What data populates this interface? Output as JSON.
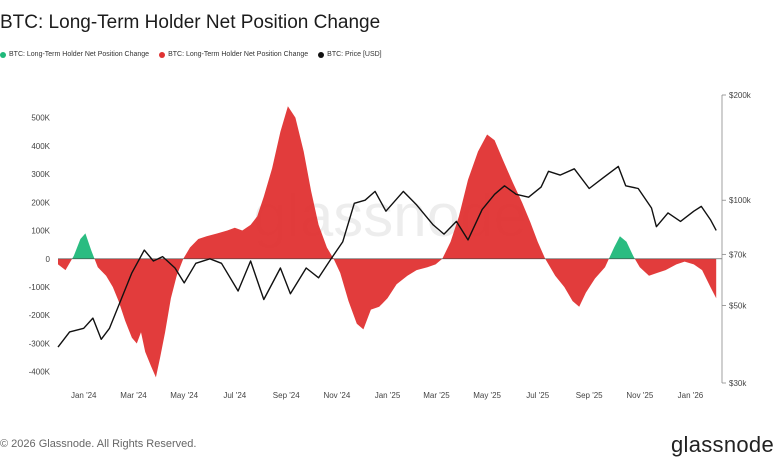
{
  "header": {
    "title": "BTC: Long-Term Holder Net Position Change"
  },
  "legend": [
    {
      "label": "BTC: Long-Term Holder Net Position Change",
      "color": "#1fb87a"
    },
    {
      "label": "BTC: Long-Term Holder Net Position Change",
      "color": "#e03232"
    },
    {
      "label": "BTC: Price [USD]",
      "color": "#111111"
    }
  ],
  "watermark": "glassnode",
  "footer": {
    "copyright": "© 2026 Glassnode. All Rights Reserved.",
    "logo": "glassnode"
  },
  "chart_data": {
    "type": "area",
    "title": "BTC: Long-Term Holder Net Position Change",
    "x_tick_labels": [
      "Jan '24",
      "Mar '24",
      "May '24",
      "Jul '24",
      "Sep '24",
      "Nov '24",
      "Jan '25",
      "Mar '25",
      "May '25",
      "Jul '25",
      "Sep '25",
      "Nov '25",
      "Jan '26"
    ],
    "x_range": [
      "2023-12-01",
      "2026-02-08"
    ],
    "y_left": {
      "ticks": [
        500000,
        400000,
        300000,
        200000,
        100000,
        0,
        -100000,
        -200000,
        -300000,
        -400000
      ],
      "tick_labels": [
        "500K",
        "400K",
        "300K",
        "200K",
        "100K",
        "0",
        "-100K",
        "-200K",
        "-300K",
        "-400K"
      ],
      "range": [
        -440000,
        580000
      ]
    },
    "y_right": {
      "scale": "log",
      "ticks": [
        30000,
        50000,
        70000,
        100000,
        200000
      ],
      "tick_labels": [
        "$30k",
        "$50k",
        "$70k",
        "$100k",
        "$200k"
      ],
      "range": [
        30000,
        200000
      ]
    },
    "grid": false,
    "legend_placement": "top-left",
    "series": [
      {
        "name": "BTC: Long-Term Holder Net Position Change",
        "axis": "left",
        "positive_color": "#1fb87a",
        "negative_color": "#e03232",
        "points": [
          [
            "2023-12-01",
            -20000
          ],
          [
            "2023-12-10",
            -40000
          ],
          [
            "2023-12-20",
            10000
          ],
          [
            "2023-12-28",
            70000
          ],
          [
            "2024-01-03",
            90000
          ],
          [
            "2024-01-10",
            30000
          ],
          [
            "2024-01-18",
            -30000
          ],
          [
            "2024-01-28",
            -60000
          ],
          [
            "2024-02-05",
            -100000
          ],
          [
            "2024-02-12",
            -150000
          ],
          [
            "2024-02-20",
            -220000
          ],
          [
            "2024-02-28",
            -280000
          ],
          [
            "2024-03-05",
            -300000
          ],
          [
            "2024-03-10",
            -260000
          ],
          [
            "2024-03-15",
            -330000
          ],
          [
            "2024-03-22",
            -380000
          ],
          [
            "2024-03-28",
            -420000
          ],
          [
            "2024-04-02",
            -350000
          ],
          [
            "2024-04-08",
            -260000
          ],
          [
            "2024-04-15",
            -140000
          ],
          [
            "2024-04-22",
            -60000
          ],
          [
            "2024-04-30",
            0
          ],
          [
            "2024-05-08",
            40000
          ],
          [
            "2024-05-18",
            70000
          ],
          [
            "2024-05-28",
            80000
          ],
          [
            "2024-06-10",
            90000
          ],
          [
            "2024-06-22",
            100000
          ],
          [
            "2024-07-01",
            110000
          ],
          [
            "2024-07-10",
            100000
          ],
          [
            "2024-07-20",
            120000
          ],
          [
            "2024-07-28",
            150000
          ],
          [
            "2024-08-05",
            220000
          ],
          [
            "2024-08-15",
            320000
          ],
          [
            "2024-08-25",
            450000
          ],
          [
            "2024-09-03",
            540000
          ],
          [
            "2024-09-12",
            500000
          ],
          [
            "2024-09-22",
            380000
          ],
          [
            "2024-10-01",
            240000
          ],
          [
            "2024-10-10",
            120000
          ],
          [
            "2024-10-20",
            40000
          ],
          [
            "2024-10-28",
            0
          ],
          [
            "2024-11-05",
            -50000
          ],
          [
            "2024-11-15",
            -150000
          ],
          [
            "2024-11-25",
            -230000
          ],
          [
            "2024-12-03",
            -250000
          ],
          [
            "2024-12-12",
            -180000
          ],
          [
            "2024-12-22",
            -170000
          ],
          [
            "2025-01-01",
            -140000
          ],
          [
            "2025-01-12",
            -90000
          ],
          [
            "2025-01-25",
            -60000
          ],
          [
            "2025-02-05",
            -40000
          ],
          [
            "2025-02-18",
            -30000
          ],
          [
            "2025-02-28",
            -20000
          ],
          [
            "2025-03-08",
            0
          ],
          [
            "2025-03-18",
            60000
          ],
          [
            "2025-03-28",
            150000
          ],
          [
            "2025-04-08",
            280000
          ],
          [
            "2025-04-20",
            380000
          ],
          [
            "2025-05-01",
            440000
          ],
          [
            "2025-05-10",
            420000
          ],
          [
            "2025-05-20",
            350000
          ],
          [
            "2025-06-01",
            270000
          ],
          [
            "2025-06-12",
            200000
          ],
          [
            "2025-06-22",
            130000
          ],
          [
            "2025-07-01",
            60000
          ],
          [
            "2025-07-10",
            0
          ],
          [
            "2025-07-22",
            -60000
          ],
          [
            "2025-08-02",
            -100000
          ],
          [
            "2025-08-12",
            -150000
          ],
          [
            "2025-08-20",
            -170000
          ],
          [
            "2025-08-28",
            -120000
          ],
          [
            "2025-09-08",
            -70000
          ],
          [
            "2025-09-20",
            -30000
          ],
          [
            "2025-10-01",
            40000
          ],
          [
            "2025-10-08",
            80000
          ],
          [
            "2025-10-16",
            60000
          ],
          [
            "2025-10-24",
            10000
          ],
          [
            "2025-11-01",
            -30000
          ],
          [
            "2025-11-12",
            -60000
          ],
          [
            "2025-11-22",
            -50000
          ],
          [
            "2025-12-02",
            -40000
          ],
          [
            "2025-12-15",
            -20000
          ],
          [
            "2025-12-25",
            -10000
          ],
          [
            "2026-01-05",
            -20000
          ],
          [
            "2026-01-15",
            -40000
          ],
          [
            "2026-01-25",
            -100000
          ],
          [
            "2026-02-01",
            -140000
          ]
        ]
      },
      {
        "name": "BTC: Price [USD]",
        "axis": "right",
        "color": "#111111",
        "points": [
          [
            "2023-12-01",
            38000
          ],
          [
            "2023-12-15",
            42000
          ],
          [
            "2024-01-01",
            43000
          ],
          [
            "2024-01-12",
            46000
          ],
          [
            "2024-01-22",
            40000
          ],
          [
            "2024-02-01",
            43000
          ],
          [
            "2024-02-15",
            52000
          ],
          [
            "2024-02-28",
            62000
          ],
          [
            "2024-03-14",
            72000
          ],
          [
            "2024-03-25",
            67000
          ],
          [
            "2024-04-05",
            69000
          ],
          [
            "2024-04-20",
            64000
          ],
          [
            "2024-05-01",
            58000
          ],
          [
            "2024-05-15",
            66000
          ],
          [
            "2024-06-01",
            68000
          ],
          [
            "2024-06-15",
            66000
          ],
          [
            "2024-07-05",
            55000
          ],
          [
            "2024-07-20",
            67000
          ],
          [
            "2024-08-05",
            52000
          ],
          [
            "2024-08-25",
            64000
          ],
          [
            "2024-09-06",
            54000
          ],
          [
            "2024-09-25",
            64000
          ],
          [
            "2024-10-10",
            60000
          ],
          [
            "2024-10-25",
            68000
          ],
          [
            "2024-11-08",
            76000
          ],
          [
            "2024-11-22",
            98000
          ],
          [
            "2024-12-05",
            100000
          ],
          [
            "2024-12-17",
            106000
          ],
          [
            "2024-12-30",
            93000
          ],
          [
            "2025-01-20",
            106000
          ],
          [
            "2025-02-05",
            97000
          ],
          [
            "2025-02-25",
            85000
          ],
          [
            "2025-03-10",
            80000
          ],
          [
            "2025-03-25",
            87000
          ],
          [
            "2025-04-08",
            77000
          ],
          [
            "2025-04-25",
            94000
          ],
          [
            "2025-05-10",
            104000
          ],
          [
            "2025-05-22",
            110000
          ],
          [
            "2025-06-05",
            104000
          ],
          [
            "2025-06-20",
            102000
          ],
          [
            "2025-07-05",
            109000
          ],
          [
            "2025-07-14",
            121000
          ],
          [
            "2025-07-28",
            118000
          ],
          [
            "2025-08-14",
            123000
          ],
          [
            "2025-09-01",
            108000
          ],
          [
            "2025-09-18",
            116000
          ],
          [
            "2025-10-06",
            125000
          ],
          [
            "2025-10-15",
            110000
          ],
          [
            "2025-10-30",
            108000
          ],
          [
            "2025-11-15",
            95000
          ],
          [
            "2025-11-21",
            84000
          ],
          [
            "2025-12-05",
            92000
          ],
          [
            "2025-12-20",
            87000
          ],
          [
            "2026-01-05",
            93000
          ],
          [
            "2026-01-14",
            96000
          ],
          [
            "2026-01-25",
            88000
          ],
          [
            "2026-02-01",
            82000
          ]
        ]
      }
    ]
  }
}
